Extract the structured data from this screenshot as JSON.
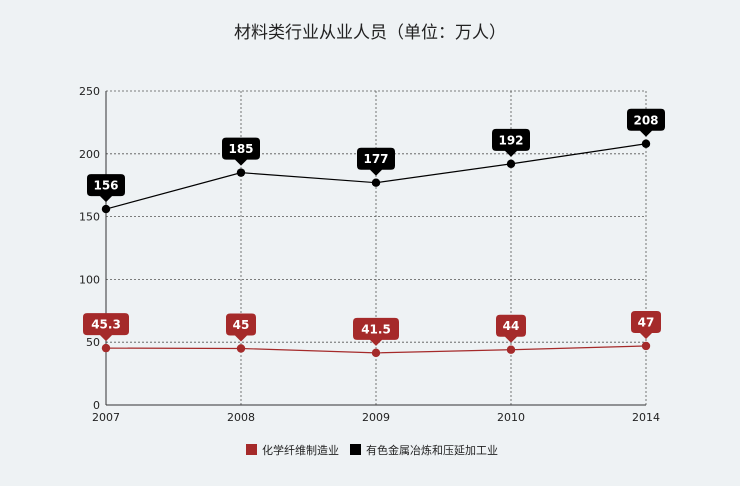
{
  "chart_data": {
    "type": "line",
    "title": "材料类行业从业人员（单位：万人）",
    "categories": [
      "2007",
      "2008",
      "2009",
      "2010",
      "2014"
    ],
    "ylim": [
      0,
      250
    ],
    "yticks": [
      0,
      50,
      100,
      150,
      200,
      250
    ],
    "grid": true,
    "legend_position": "bottom",
    "series": [
      {
        "name": "化学纤维制造业",
        "color": "#a52a2a",
        "values": [
          45.3,
          45,
          41.5,
          44,
          47
        ],
        "labels": [
          "45.3",
          "45",
          "41.5",
          "44",
          "47"
        ]
      },
      {
        "name": "有色金属冶炼和压延加工业",
        "color": "#000000",
        "values": [
          156,
          185,
          177,
          192,
          208
        ],
        "labels": [
          "156",
          "185",
          "177",
          "192",
          "208"
        ]
      }
    ]
  }
}
